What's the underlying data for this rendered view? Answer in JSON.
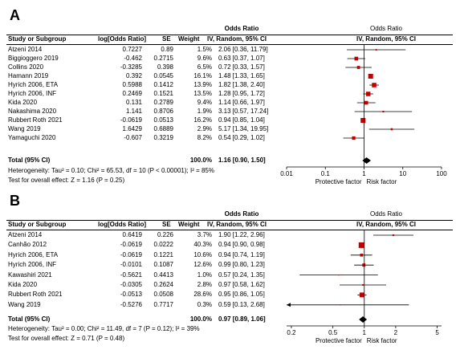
{
  "chart_data": [
    {
      "type": "forest",
      "panel_label": "A",
      "columns": [
        "Study or Subgroup",
        "log[Odds Ratio]",
        "SE",
        "Weight",
        "Odds Ratio IV, Random, 95% CI"
      ],
      "header_group_left": "Odds Ratio",
      "header_group_right": "Odds Ratio",
      "header_method_right": "IV, Random, 95% CI",
      "studies": [
        {
          "name": "Atzeni 2014",
          "logor": "0.7227",
          "se": "0.89",
          "weight": "1.5%",
          "ci": "2.06 [0.36, 11.79]",
          "or": 2.06,
          "lo": 0.36,
          "hi": 11.79,
          "w": 1.5
        },
        {
          "name": "Biggioggero 2019",
          "logor": "-0.462",
          "se": "0.2715",
          "weight": "9.6%",
          "ci": "0.63 [0.37, 1.07]",
          "or": 0.63,
          "lo": 0.37,
          "hi": 1.07,
          "w": 9.6
        },
        {
          "name": "Collins 2020",
          "logor": "-0.3285",
          "se": "0.398",
          "weight": "6.5%",
          "ci": "0.72 [0.33, 1.57]",
          "or": 0.72,
          "lo": 0.33,
          "hi": 1.57,
          "w": 6.5
        },
        {
          "name": "Hamann 2019",
          "logor": "0.392",
          "se": "0.0545",
          "weight": "16.1%",
          "ci": "1.48 [1.33, 1.65]",
          "or": 1.48,
          "lo": 1.33,
          "hi": 1.65,
          "w": 16.1
        },
        {
          "name": "Hyrich 2006, ETA",
          "logor": "0.5988",
          "se": "0.1412",
          "weight": "13.9%",
          "ci": "1.82 [1.38, 2.40]",
          "or": 1.82,
          "lo": 1.38,
          "hi": 2.4,
          "w": 13.9
        },
        {
          "name": "Hyrich 2006, INF",
          "logor": "0.2469",
          "se": "0.1521",
          "weight": "13.5%",
          "ci": "1.28 [0.95, 1.72]",
          "or": 1.28,
          "lo": 0.95,
          "hi": 1.72,
          "w": 13.5
        },
        {
          "name": "Kida 2020",
          "logor": "0.131",
          "se": "0.2789",
          "weight": "9.4%",
          "ci": "1.14 [0.66, 1.97]",
          "or": 1.14,
          "lo": 0.66,
          "hi": 1.97,
          "w": 9.4
        },
        {
          "name": "Nakashima 2020",
          "logor": "1.141",
          "se": "0.8706",
          "weight": "1.9%",
          "ci": "3.13 [0.57, 17.24]",
          "or": 3.13,
          "lo": 0.57,
          "hi": 17.24,
          "w": 1.9
        },
        {
          "name": "Rubbert Roth 2021",
          "logor": "-0.0619",
          "se": "0.0513",
          "weight": "16.2%",
          "ci": "0.94 [0.85, 1.04]",
          "or": 0.94,
          "lo": 0.85,
          "hi": 1.04,
          "w": 16.2
        },
        {
          "name": "Wang 2019",
          "logor": "1.6429",
          "se": "0.6889",
          "weight": "2.9%",
          "ci": "5.17 [1.34, 19.95]",
          "or": 5.17,
          "lo": 1.34,
          "hi": 19.95,
          "w": 2.9
        },
        {
          "name": "Yamaguchi 2020",
          "logor": "-0.607",
          "se": "0.3219",
          "weight": "8.2%",
          "ci": "0.54 [0.29, 1.02]",
          "or": 0.54,
          "lo": 0.29,
          "hi": 1.02,
          "w": 8.2
        }
      ],
      "total": {
        "label": "Total (95% CI)",
        "weight": "100.0%",
        "ci": "1.16 [0.90, 1.50]",
        "or": 1.16,
        "lo": 0.9,
        "hi": 1.5
      },
      "heterogeneity": "Heterogeneity: Tau² = 0.10; Chi² = 65.53, df = 10 (P < 0.00001); I² = 85%",
      "overall_effect": "Test for overall effect: Z = 1.16 (P = 0.25)",
      "x_scale": "log",
      "xlim": [
        0.01,
        100
      ],
      "x_ticks": [
        0.01,
        0.1,
        1,
        10,
        100
      ],
      "x_tick_labels": [
        "0.01",
        "0.1",
        "1",
        "10",
        "100"
      ],
      "left_favours": "Protective factor",
      "right_favours": "Risk factor"
    },
    {
      "type": "forest",
      "panel_label": "B",
      "columns": [
        "Study or Subgroup",
        "log[Odds Ratio]",
        "SE",
        "Weight",
        "Odds Ratio IV, Random, 95% CI"
      ],
      "header_group_left": "Odds Ratio",
      "header_group_right": "Odds Ratio",
      "header_method_right": "IV, Random, 95% CI",
      "studies": [
        {
          "name": "Atzeni 2014",
          "logor": "0.6419",
          "se": "0.226",
          "weight": "3.7%",
          "ci": "1.90 [1.22, 2.96]",
          "or": 1.9,
          "lo": 1.22,
          "hi": 2.96,
          "w": 3.7
        },
        {
          "name": "Canhão 2012",
          "logor": "-0.0619",
          "se": "0.0222",
          "weight": "40.3%",
          "ci": "0.94 [0.90, 0.98]",
          "or": 0.94,
          "lo": 0.9,
          "hi": 0.98,
          "w": 40.3
        },
        {
          "name": "Hyrich 2006, ETA",
          "logor": "-0.0619",
          "se": "0.1221",
          "weight": "10.6%",
          "ci": "0.94 [0.74, 1.19]",
          "or": 0.94,
          "lo": 0.74,
          "hi": 1.19,
          "w": 10.6
        },
        {
          "name": "Hyrich 2006, INF",
          "logor": "-0.0101",
          "se": "0.1087",
          "weight": "12.6%",
          "ci": "0.99 [0.80, 1.23]",
          "or": 0.99,
          "lo": 0.8,
          "hi": 1.23,
          "w": 12.6
        },
        {
          "name": "Kawashiri 2021",
          "logor": "-0.5621",
          "se": "0.4413",
          "weight": "1.0%",
          "ci": "0.57 [0.24, 1.35]",
          "or": 0.57,
          "lo": 0.24,
          "hi": 1.35,
          "w": 1.0
        },
        {
          "name": "Kida 2020",
          "logor": "-0.0305",
          "se": "0.2624",
          "weight": "2.8%",
          "ci": "0.97 [0.58, 1.62]",
          "or": 0.97,
          "lo": 0.58,
          "hi": 1.62,
          "w": 2.8
        },
        {
          "name": "Rubbert Roth 2021",
          "logor": "-0.0513",
          "se": "0.0508",
          "weight": "28.6%",
          "ci": "0.95 [0.86, 1.05]",
          "or": 0.95,
          "lo": 0.86,
          "hi": 1.05,
          "w": 28.6
        },
        {
          "name": "Wang 2019",
          "logor": "-0.5276",
          "se": "0.7717",
          "weight": "0.3%",
          "ci": "0.59 [0.13, 2.68]",
          "or": 0.59,
          "lo": 0.13,
          "hi": 2.68,
          "w": 0.3
        }
      ],
      "total": {
        "label": "Total (95% CI)",
        "weight": "100.0%",
        "ci": "0.97 [0.89, 1.06]",
        "or": 0.97,
        "lo": 0.89,
        "hi": 1.06
      },
      "heterogeneity": "Heterogeneity: Tau² = 0.00; Chi² = 11.49, df = 7 (P = 0.12); I² = 39%",
      "overall_effect": "Test for overall effect: Z = 0.71 (P = 0.48)",
      "x_scale": "log",
      "xlim": [
        0.18,
        5.5
      ],
      "x_ticks": [
        0.2,
        0.5,
        1,
        2,
        5
      ],
      "x_tick_labels": [
        "0.2",
        "0.5",
        "1",
        "2",
        "5"
      ],
      "left_favours": "Protective factor",
      "right_favours": "Risk factor"
    }
  ],
  "colors": {
    "marker": "#c00000",
    "diamond": "#000000",
    "ci_line": "#000000"
  }
}
